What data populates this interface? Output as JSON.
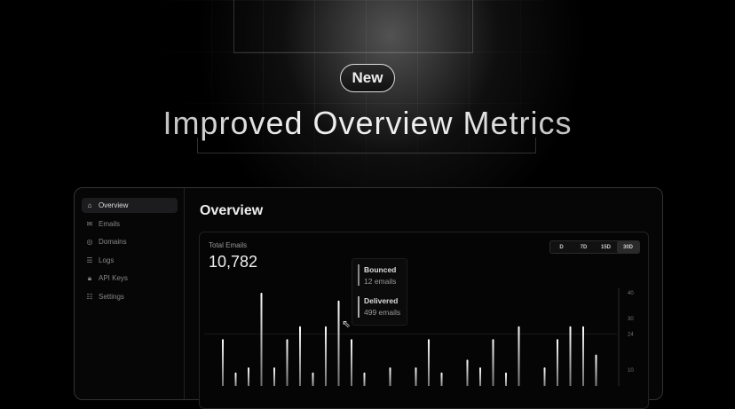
{
  "hero": {
    "badge": "New",
    "title": "Improved Overview Metrics"
  },
  "sidebar": {
    "items": [
      {
        "label": "Overview",
        "icon": "home-icon",
        "active": true
      },
      {
        "label": "Emails",
        "icon": "mail-icon"
      },
      {
        "label": "Domains",
        "icon": "globe-icon"
      },
      {
        "label": "Logs",
        "icon": "logs-icon"
      },
      {
        "label": "API Keys",
        "icon": "lock-icon"
      },
      {
        "label": "Settings",
        "icon": "sliders-icon"
      }
    ]
  },
  "main": {
    "title": "Overview",
    "card": {
      "label": "Total Emails",
      "value": "10,782",
      "ranges": [
        "D",
        "7D",
        "15D",
        "30D"
      ],
      "selected_range": "30D"
    }
  },
  "tooltip": {
    "items": [
      {
        "title": "Bounced",
        "sub": "12 emails"
      },
      {
        "title": "Delivered",
        "sub": "499 emails"
      }
    ]
  },
  "chart_data": {
    "type": "bar",
    "ylim": [
      0,
      40
    ],
    "yticks": [
      40,
      30,
      24,
      10
    ],
    "values": [
      22,
      9,
      11,
      40,
      11,
      22,
      27,
      9,
      27,
      37,
      22,
      9,
      0,
      11,
      0,
      11,
      22,
      9,
      0,
      14,
      11,
      22,
      9,
      27,
      0,
      11,
      22,
      27,
      27,
      16
    ]
  }
}
